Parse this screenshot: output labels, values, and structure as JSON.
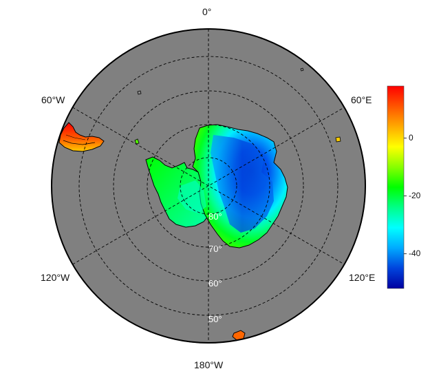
{
  "map": {
    "projection": "south-polar-stereographic",
    "ocean_color": "#808080",
    "background_color": "#ffffff",
    "coastline_color": "#000000",
    "graticule_color": "#000000",
    "lon_labels": [
      {
        "id": "lon-0",
        "text": "0°"
      },
      {
        "id": "lon-60e",
        "text": "60°E"
      },
      {
        "id": "lon-120e",
        "text": "120°E"
      },
      {
        "id": "lon-180",
        "text": "180°W"
      },
      {
        "id": "lon-120w",
        "text": "120°W"
      },
      {
        "id": "lon-60w",
        "text": "60°W"
      }
    ],
    "lat_labels": [
      {
        "id": "lat-80",
        "text": "80°"
      },
      {
        "id": "lat-70",
        "text": "70°"
      },
      {
        "id": "lat-60",
        "text": "60°"
      },
      {
        "id": "lat-50",
        "text": "50°"
      }
    ]
  },
  "colorbar": {
    "range": [
      -52,
      18
    ],
    "colors": [
      "#0000a0",
      "#0044dd",
      "#00aaff",
      "#00ffff",
      "#00ff88",
      "#00ff00",
      "#88ff00",
      "#ffff00",
      "#ffaa00",
      "#ff5500",
      "#ff0000"
    ],
    "ticks": [
      {
        "value": 0,
        "label": "0"
      },
      {
        "value": -20,
        "label": "-20"
      },
      {
        "value": -40,
        "label": "-40"
      }
    ]
  }
}
